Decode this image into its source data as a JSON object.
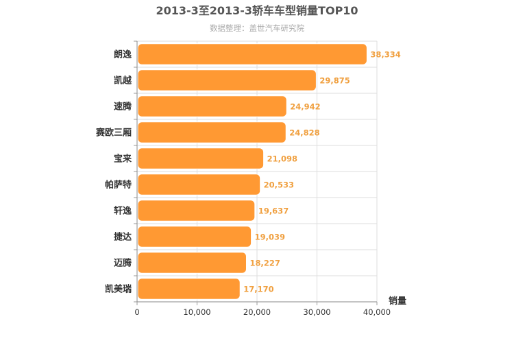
{
  "chart_data": {
    "type": "bar",
    "orientation": "horizontal",
    "title": "2013-3至2013-3轿车车型销量TOP10",
    "subtitle": "数据整理：盖世汽车研究院",
    "xlabel": "销量",
    "ylabel": "",
    "categories": [
      "朗逸",
      "凯越",
      "速腾",
      "赛欧三厢",
      "宝来",
      "帕萨特",
      "轩逸",
      "捷达",
      "迈腾",
      "凯美瑞"
    ],
    "values": [
      38334,
      29875,
      24942,
      24828,
      21098,
      20533,
      19637,
      19039,
      18227,
      17170
    ],
    "value_labels": [
      "38,334",
      "29,875",
      "24,942",
      "24,828",
      "21,098",
      "20,533",
      "19,637",
      "19,039",
      "18,227",
      "17,170"
    ],
    "xlim": [
      0,
      40000
    ],
    "xticks": [
      0,
      10000,
      20000,
      30000,
      40000
    ],
    "xtick_labels": [
      "0",
      "10,000",
      "20,000",
      "30,000",
      "40,000"
    ],
    "bar_color": "#FF9933",
    "label_color": "#F0A040",
    "grid": true,
    "legend": "none"
  }
}
